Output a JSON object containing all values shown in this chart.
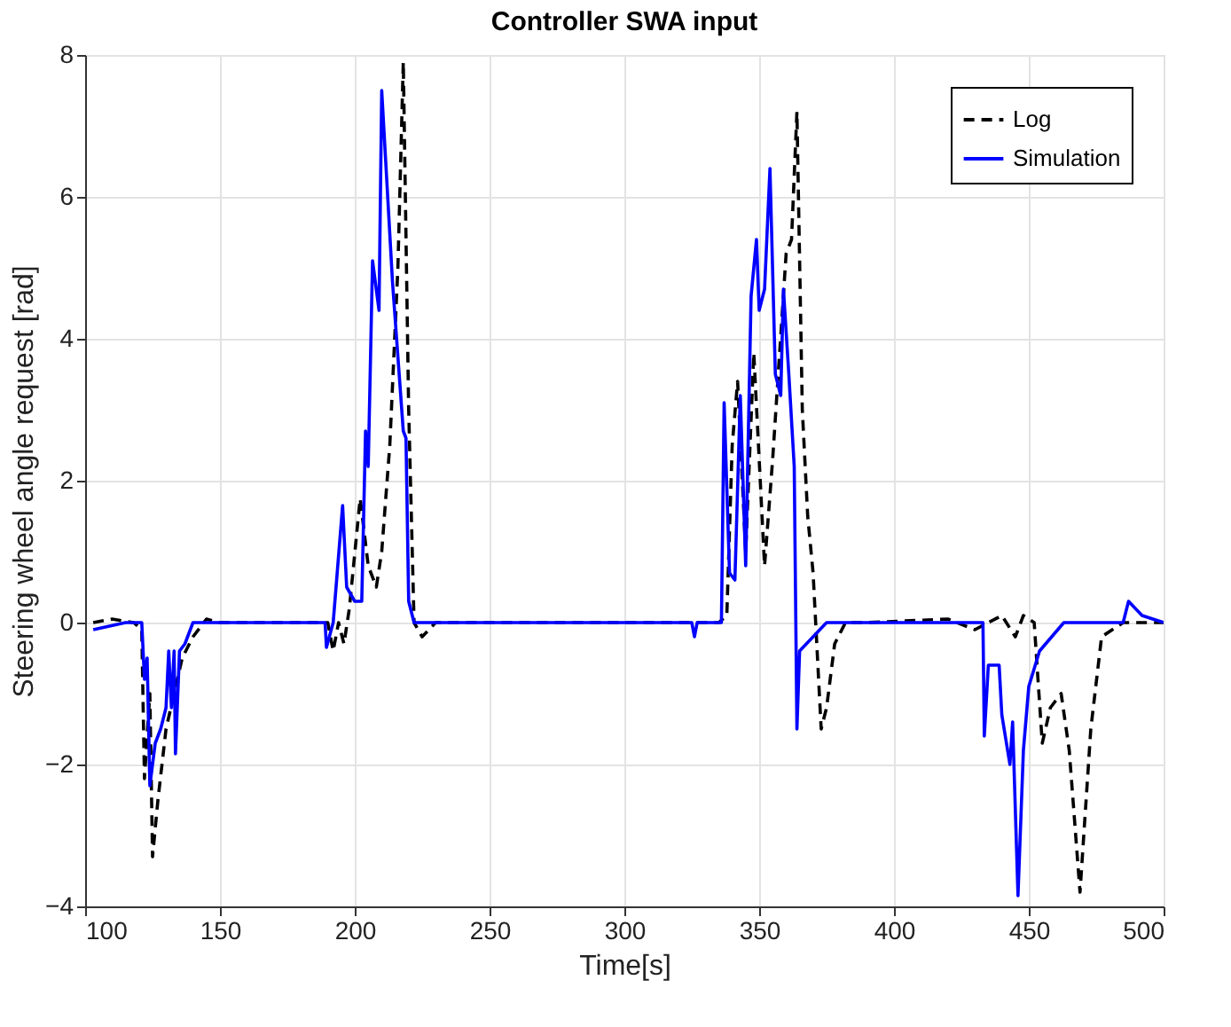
{
  "chart_data": {
    "type": "line",
    "title": "Controller SWA input",
    "xlabel": "Time[s]",
    "ylabel": "Steering wheel angle request [rad]",
    "xlim": [
      100,
      500
    ],
    "xticks": [
      100,
      150,
      200,
      250,
      300,
      350,
      400,
      450,
      500
    ],
    "ylim": [
      -4,
      8
    ],
    "yticks": [
      -4,
      -2,
      0,
      2,
      4,
      6,
      8
    ],
    "grid": true,
    "legend": "top right",
    "marker": "none",
    "series": [
      {
        "name": "Log",
        "color": "#000000",
        "line_style": "dashed",
        "x": [
          103,
          110,
          118,
          121,
          122,
          124,
          125,
          127,
          130,
          133,
          136,
          140,
          145,
          150,
          190,
          192,
          194,
          196,
          198,
          202,
          205,
          208,
          210,
          213,
          216,
          218,
          220,
          222,
          225,
          230,
          335,
          338,
          340,
          342,
          345,
          348,
          352,
          355,
          360,
          362,
          364,
          366,
          368,
          370,
          373,
          375,
          378,
          382,
          390,
          420,
          430,
          440,
          445,
          448,
          452,
          455,
          458,
          462,
          465,
          469,
          473,
          477,
          485,
          500
        ],
        "values": [
          0,
          0.05,
          0,
          -0.1,
          -2.2,
          -1.0,
          -3.3,
          -2.5,
          -1.5,
          -1.0,
          -0.5,
          -0.2,
          0.05,
          0,
          0,
          -0.4,
          0,
          -0.3,
          0.2,
          1.75,
          0.8,
          0.5,
          1.0,
          2.5,
          5,
          7.9,
          3,
          0,
          -0.2,
          0,
          0,
          0.1,
          2.5,
          3.4,
          1.0,
          3.8,
          0.8,
          2.3,
          5.2,
          5.4,
          7.2,
          3,
          1.5,
          0.7,
          -1.5,
          -1.2,
          -0.3,
          0,
          0,
          0.05,
          -0.1,
          0.1,
          -0.2,
          0.1,
          0,
          -1.7,
          -1.2,
          -1.0,
          -1.8,
          -3.8,
          -1.5,
          -0.2,
          0,
          0
        ]
      },
      {
        "name": "Simulation",
        "color": "#0000ff",
        "line_style": "solid",
        "x": [
          103,
          115,
          121,
          122,
          123,
          124,
          126,
          128,
          130,
          131,
          132,
          133,
          133.5,
          135,
          137,
          140,
          189,
          189.5,
          192,
          195.5,
          197,
          200,
          202.6,
          204,
          205,
          206.6,
          209,
          210,
          214,
          218,
          219,
          220,
          222,
          325,
          326,
          327,
          336,
          337,
          339,
          341,
          343,
          345,
          347,
          349,
          350,
          352,
          354,
          356,
          358,
          359,
          361,
          363,
          364,
          365,
          370,
          375,
          433,
          433.5,
          435,
          439,
          440,
          443,
          444,
          446,
          448,
          450,
          454,
          463,
          485,
          487,
          492,
          500
        ],
        "values": [
          -0.1,
          0,
          0,
          -0.8,
          -0.5,
          -2.3,
          -1.7,
          -1.5,
          -1.2,
          -0.4,
          -1.2,
          -0.4,
          -1.85,
          -0.4,
          -0.3,
          0,
          0,
          -0.35,
          0,
          1.65,
          0.5,
          0.3,
          0.3,
          2.7,
          2.2,
          5.1,
          4.4,
          7.5,
          4.8,
          2.7,
          2.6,
          0.3,
          0,
          0,
          -0.2,
          0,
          0,
          3.1,
          0.7,
          0.6,
          3.2,
          0.8,
          4.6,
          5.4,
          4.4,
          4.7,
          6.4,
          3.5,
          3.2,
          4.7,
          3.5,
          2.2,
          -1.5,
          -0.4,
          -0.2,
          0,
          0,
          -1.6,
          -0.6,
          -0.6,
          -1.3,
          -2.0,
          -1.4,
          -3.85,
          -1.8,
          -0.9,
          -0.4,
          0,
          0,
          0.3,
          0.1,
          0
        ]
      }
    ]
  }
}
